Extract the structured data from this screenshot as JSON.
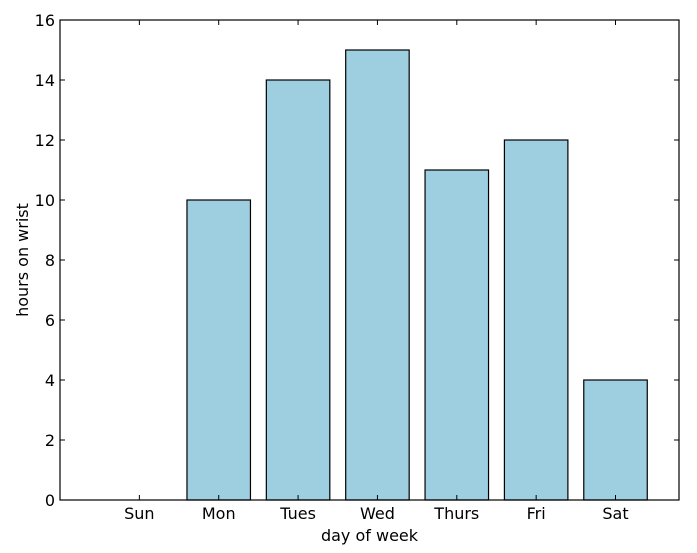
{
  "chart_data": {
    "type": "bar",
    "categories": [
      "Sun",
      "Mon",
      "Tues",
      "Wed",
      "Thurs",
      "Fri",
      "Sat"
    ],
    "values": [
      0,
      10,
      14,
      15,
      11,
      12,
      4
    ],
    "title": "",
    "xlabel": "day of week",
    "ylabel": "hours on wrist",
    "ylim": [
      0,
      16
    ],
    "yticks": [
      0,
      2,
      4,
      6,
      8,
      10,
      12,
      14,
      16
    ],
    "grid": false,
    "legend": "none",
    "colors": {
      "bar_fill": "#9ecfe0",
      "bar_edge": "#000000",
      "axes": "#000000",
      "background": "#ffffff"
    }
  }
}
